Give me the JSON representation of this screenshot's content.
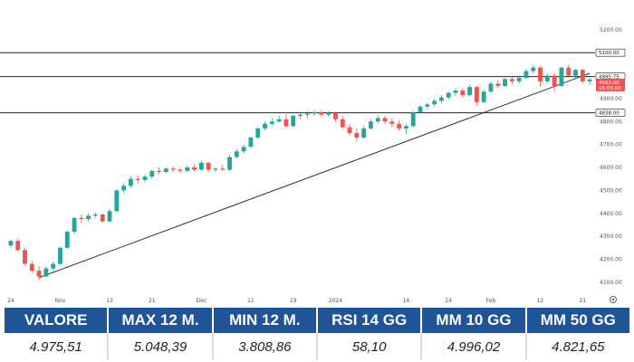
{
  "chart_data": {
    "type": "candlestick",
    "ylim": [
      4060,
      5290
    ],
    "y_ticks": [
      4100,
      4200,
      4300,
      4400,
      4500,
      4600,
      4700,
      4800,
      4900,
      5000,
      5100,
      5200
    ],
    "y_tick_labels": [
      "4100.00",
      "4200.00",
      "4300.00",
      "4400.00",
      "4500.00",
      "4600.00",
      "4700.00",
      "4800.00",
      "4900.00",
      "5000.00",
      "5100.00",
      "5200.00"
    ],
    "x_tick_labels": [
      "24",
      "Nov",
      "13",
      "21",
      "Dec",
      "11",
      "19",
      "2024",
      "16",
      "24",
      "Feb",
      "12",
      "21"
    ],
    "x_tick_indices": [
      0,
      7,
      14,
      20,
      27,
      34,
      40,
      46,
      56,
      62,
      68,
      75,
      81
    ],
    "levels": [
      {
        "value": 5100,
        "label": "5100.00"
      },
      {
        "value": 4995.75,
        "label": "4995.75"
      },
      {
        "value": 4838,
        "label": "4838.00"
      }
    ],
    "last_price_label": "4983.00",
    "last_price_value": 4983,
    "last_price_sublabel": "16:05:00",
    "trendline": {
      "from": [
        4,
        4120
      ],
      "to": [
        82,
        5010
      ]
    },
    "candles": [
      [
        4260,
        4285,
        4250,
        4280
      ],
      [
        4280,
        4290,
        4235,
        4240
      ],
      [
        4240,
        4250,
        4175,
        4180
      ],
      [
        4180,
        4195,
        4140,
        4150
      ],
      [
        4150,
        4170,
        4110,
        4125
      ],
      [
        4125,
        4170,
        4120,
        4160
      ],
      [
        4160,
        4190,
        4150,
        4180
      ],
      [
        4180,
        4255,
        4175,
        4250
      ],
      [
        4250,
        4325,
        4245,
        4320
      ],
      [
        4320,
        4385,
        4310,
        4380
      ],
      [
        4380,
        4395,
        4360,
        4375
      ],
      [
        4375,
        4400,
        4365,
        4390
      ],
      [
        4390,
        4405,
        4380,
        4395
      ],
      [
        4395,
        4400,
        4360,
        4365
      ],
      [
        4365,
        4420,
        4360,
        4410
      ],
      [
        4410,
        4505,
        4405,
        4500
      ],
      [
        4500,
        4530,
        4490,
        4520
      ],
      [
        4520,
        4560,
        4510,
        4550
      ],
      [
        4550,
        4565,
        4530,
        4545
      ],
      [
        4545,
        4570,
        4535,
        4560
      ],
      [
        4560,
        4590,
        4550,
        4585
      ],
      [
        4585,
        4600,
        4570,
        4580
      ],
      [
        4580,
        4600,
        4575,
        4595
      ],
      [
        4595,
        4605,
        4580,
        4590
      ],
      [
        4590,
        4600,
        4575,
        4585
      ],
      [
        4585,
        4610,
        4580,
        4600
      ],
      [
        4600,
        4615,
        4585,
        4590
      ],
      [
        4590,
        4630,
        4585,
        4620
      ],
      [
        4620,
        4625,
        4580,
        4590
      ],
      [
        4590,
        4600,
        4580,
        4595
      ],
      [
        4595,
        4610,
        4585,
        4590
      ],
      [
        4590,
        4655,
        4585,
        4645
      ],
      [
        4645,
        4680,
        4640,
        4670
      ],
      [
        4670,
        4700,
        4660,
        4690
      ],
      [
        4690,
        4735,
        4685,
        4730
      ],
      [
        4730,
        4775,
        4725,
        4770
      ],
      [
        4770,
        4800,
        4760,
        4790
      ],
      [
        4790,
        4815,
        4780,
        4800
      ],
      [
        4800,
        4825,
        4795,
        4810
      ],
      [
        4810,
        4830,
        4770,
        4780
      ],
      [
        4780,
        4830,
        4775,
        4825
      ],
      [
        4825,
        4840,
        4810,
        4830
      ],
      [
        4830,
        4845,
        4815,
        4835
      ],
      [
        4835,
        4850,
        4825,
        4840
      ],
      [
        4840,
        4850,
        4820,
        4830
      ],
      [
        4830,
        4845,
        4820,
        4838
      ],
      [
        4838,
        4842,
        4800,
        4810
      ],
      [
        4810,
        4825,
        4770,
        4775
      ],
      [
        4775,
        4790,
        4740,
        4750
      ],
      [
        4750,
        4770,
        4710,
        4730
      ],
      [
        4730,
        4780,
        4725,
        4770
      ],
      [
        4770,
        4810,
        4765,
        4800
      ],
      [
        4800,
        4830,
        4790,
        4815
      ],
      [
        4815,
        4825,
        4790,
        4800
      ],
      [
        4800,
        4815,
        4775,
        4790
      ],
      [
        4790,
        4805,
        4760,
        4770
      ],
      [
        4770,
        4790,
        4745,
        4780
      ],
      [
        4780,
        4845,
        4775,
        4840
      ],
      [
        4840,
        4870,
        4835,
        4865
      ],
      [
        4865,
        4880,
        4850,
        4875
      ],
      [
        4875,
        4900,
        4865,
        4890
      ],
      [
        4890,
        4915,
        4880,
        4905
      ],
      [
        4905,
        4930,
        4895,
        4925
      ],
      [
        4925,
        4945,
        4910,
        4935
      ],
      [
        4935,
        4945,
        4905,
        4915
      ],
      [
        4915,
        4960,
        4910,
        4950
      ],
      [
        4950,
        4955,
        4870,
        4885
      ],
      [
        4885,
        4940,
        4880,
        4930
      ],
      [
        4930,
        4975,
        4925,
        4965
      ],
      [
        4965,
        4980,
        4945,
        4955
      ],
      [
        4955,
        4990,
        4950,
        4985
      ],
      [
        4985,
        4995,
        4960,
        4975
      ],
      [
        4975,
        5000,
        4965,
        4990
      ],
      [
        4990,
        5030,
        4985,
        5020
      ],
      [
        5020,
        5048,
        5010,
        5035
      ],
      [
        5035,
        5040,
        4950,
        4975
      ],
      [
        4975,
        5010,
        4970,
        5000
      ],
      [
        5000,
        5010,
        4930,
        4955
      ],
      [
        4955,
        5040,
        4950,
        5035
      ],
      [
        5035,
        5048,
        4990,
        5000
      ],
      [
        5000,
        5030,
        4990,
        5025
      ],
      [
        5025,
        5030,
        4965,
        4975
      ],
      [
        4975,
        4990,
        4960,
        4983
      ]
    ]
  },
  "stats": {
    "headers": [
      "VALORE",
      "MAX 12 M.",
      "MIN 12 M.",
      "RSI 14 GG",
      "MM 10 GG",
      "MM 50 GG"
    ],
    "values": [
      "4.975,51",
      "5.048,39",
      "3.808,86",
      "58,10",
      "4.996,02",
      "4.821,65"
    ]
  },
  "colors": {
    "bull": "#26a69a",
    "bear": "#ef5350",
    "header_bg": "#1f5596",
    "last_price_bg": "#ef5350"
  },
  "icons": {
    "axis_settings": "gear-icon"
  }
}
